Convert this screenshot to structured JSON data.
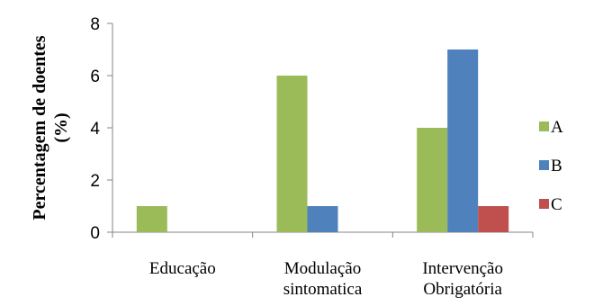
{
  "chart_data": {
    "type": "bar",
    "title": "",
    "xlabel": "",
    "ylabel": "Percentagem de doentes (%)",
    "ylabel_lines": [
      "Percentagem de doentes",
      "(%)"
    ],
    "ylim": [
      0,
      8
    ],
    "yticks": [
      0,
      2,
      4,
      6,
      8
    ],
    "grid": false,
    "legend_position": "right",
    "categories": [
      "Educação",
      "Modulação sintomatica",
      "Intervenção Obrigatória"
    ],
    "category_lines": [
      [
        "Educação"
      ],
      [
        "Modulação",
        "sintomatica"
      ],
      [
        "Intervenção",
        "Obrigatória"
      ]
    ],
    "series": [
      {
        "name": "A",
        "color": "#9bbb59",
        "values": [
          1,
          6,
          4
        ]
      },
      {
        "name": "B",
        "color": "#4f81bd",
        "values": [
          0,
          1,
          7
        ]
      },
      {
        "name": "C",
        "color": "#c0504d",
        "values": [
          0,
          0,
          1
        ]
      }
    ]
  }
}
